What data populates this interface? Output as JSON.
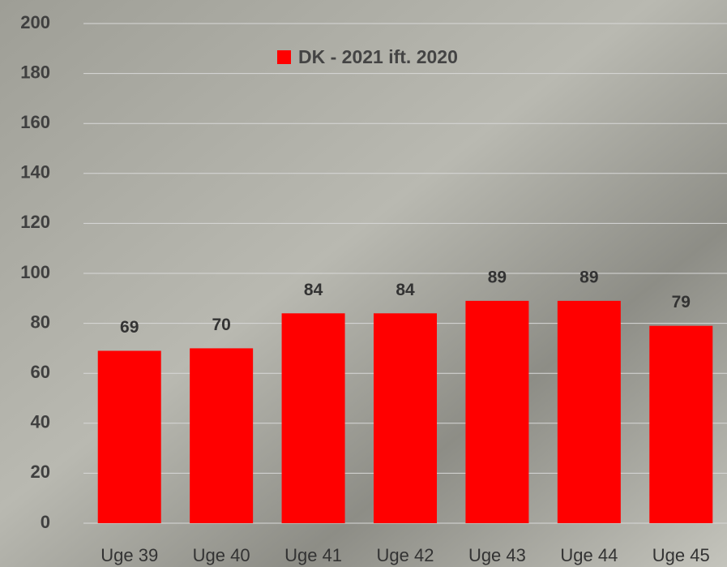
{
  "chart_data": {
    "type": "bar",
    "legend_label": "DK - 2021 ift. 2020",
    "categories": [
      "Uge 39",
      "Uge 40",
      "Uge 41",
      "Uge 42",
      "Uge 43",
      "Uge 44",
      "Uge 45"
    ],
    "values": [
      69,
      70,
      84,
      84,
      89,
      89,
      79
    ],
    "color": "#ff0000",
    "ylim": [
      0,
      200
    ],
    "yticks": [
      0,
      20,
      40,
      60,
      80,
      100,
      120,
      140,
      160,
      180,
      200
    ],
    "grid": true
  }
}
